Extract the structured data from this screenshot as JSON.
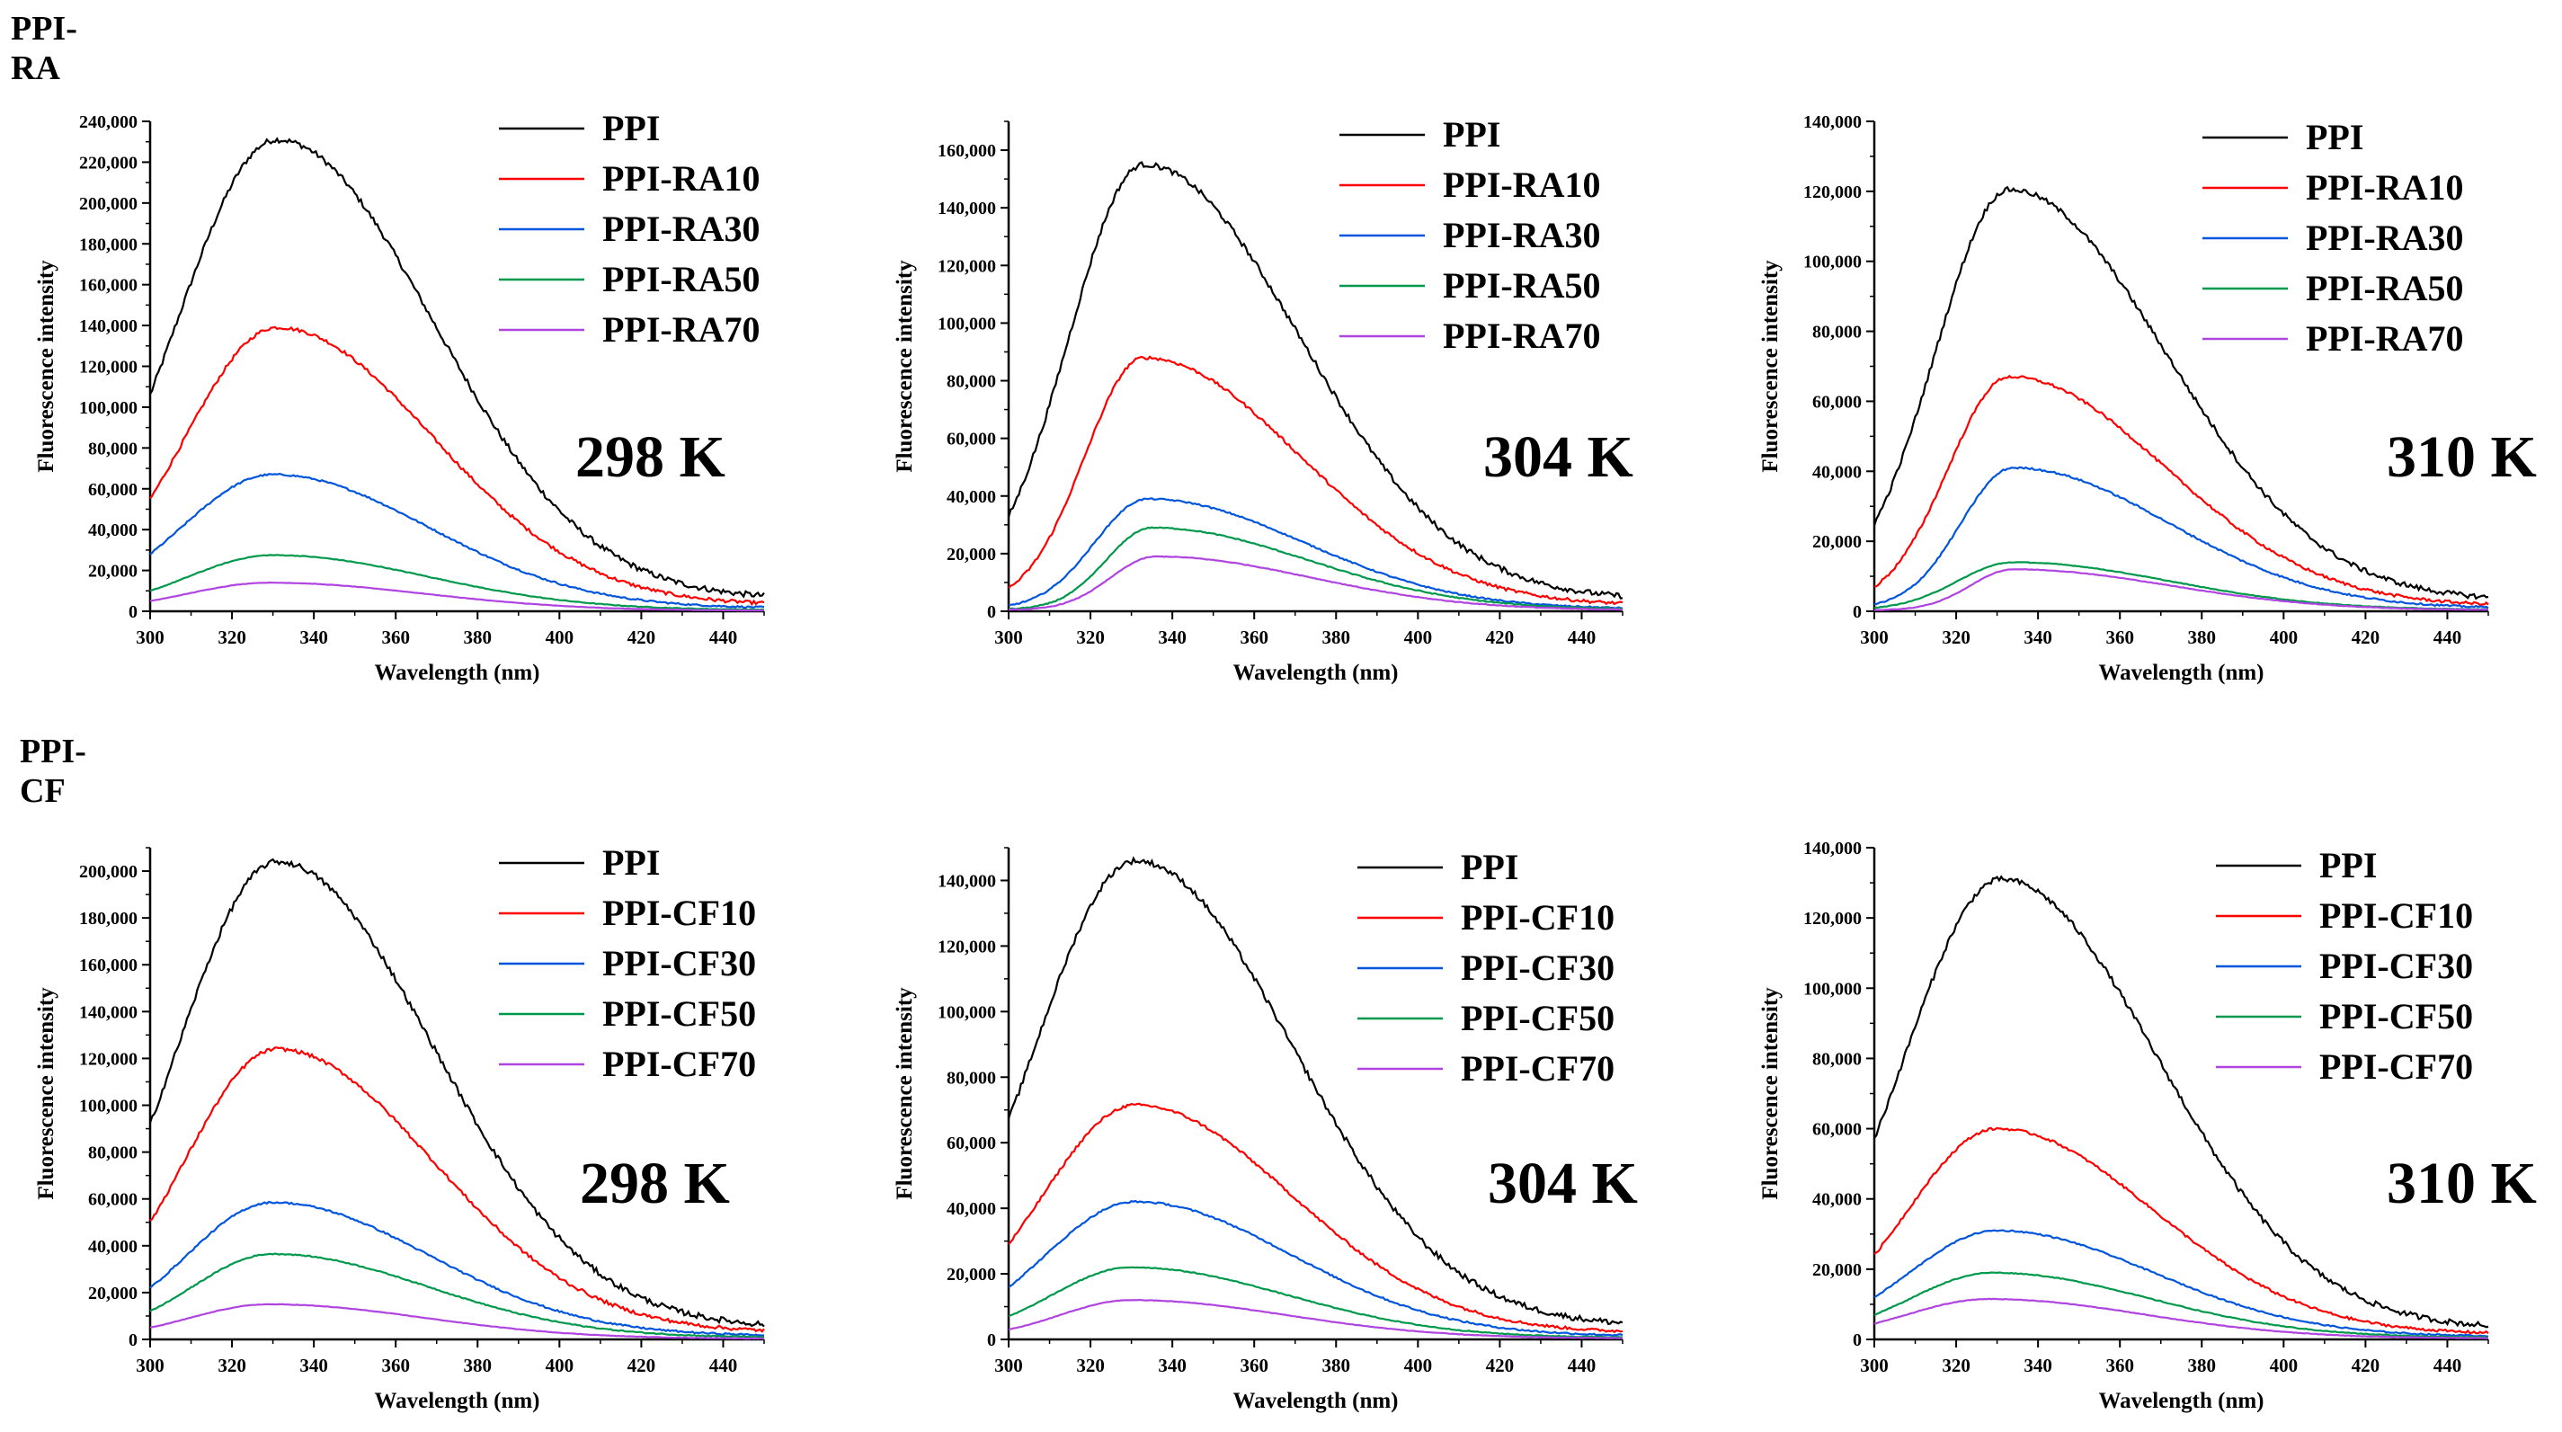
{
  "groups": [
    {
      "title": "PPI-RA"
    },
    {
      "title": "PPI-CF"
    }
  ],
  "colors": {
    "PPI": "#000000",
    "s10": "#ff0000",
    "s30": "#0055dd",
    "s50": "#00994c",
    "s70": "#b044e0",
    "axis": "#000000"
  },
  "chart_data": [
    {
      "type": "line",
      "group": "PPI-RA",
      "temp_label": "298 K",
      "xlabel": "Wavelength (nm)",
      "ylabel": "Fluorescence intensity",
      "xlim": [
        300,
        450
      ],
      "ylim": [
        0,
        240000
      ],
      "xticks": [
        "300",
        "320",
        "340",
        "360",
        "380",
        "400",
        "420",
        "440"
      ],
      "yticks": [
        "0",
        "20,000",
        "40,000",
        "60,000",
        "80,000",
        "100,000",
        "120,000",
        "140,000",
        "160,000",
        "180,000",
        "200,000",
        "220,000",
        "240,000"
      ],
      "series": [
        {
          "name": "PPI",
          "peak_x": 331,
          "peak_y": 231000,
          "start_y": 106000,
          "end_y": 6000
        },
        {
          "name": "PPI-RA10",
          "peak_x": 331,
          "peak_y": 139000,
          "start_y": 55000,
          "end_y": 3000
        },
        {
          "name": "PPI-RA30",
          "peak_x": 330,
          "peak_y": 67000,
          "start_y": 28000,
          "end_y": 1500
        },
        {
          "name": "PPI-RA50",
          "peak_x": 330,
          "peak_y": 27500,
          "start_y": 10000,
          "end_y": 600
        },
        {
          "name": "PPI-RA70",
          "peak_x": 329,
          "peak_y": 14000,
          "start_y": 5000,
          "end_y": 300
        }
      ]
    },
    {
      "type": "line",
      "group": "PPI-RA",
      "temp_label": "304 K",
      "xlabel": "Wavelength (nm)",
      "ylabel": "Fluorescence intensity",
      "xlim": [
        300,
        450
      ],
      "ylim": [
        0,
        170000
      ],
      "xticks": [
        "300",
        "320",
        "340",
        "360",
        "380",
        "400",
        "420",
        "440"
      ],
      "yticks": [
        "0",
        "20,000",
        "40,000",
        "60,000",
        "80,000",
        "100,000",
        "120,000",
        "140,000",
        "160,000"
      ],
      "series": [
        {
          "name": "PPI",
          "peak_x": 333,
          "peak_y": 155000,
          "start_y": 33000,
          "end_y": 4000
        },
        {
          "name": "PPI-RA10",
          "peak_x": 333,
          "peak_y": 88000,
          "start_y": 8000,
          "end_y": 2000
        },
        {
          "name": "PPI-RA30",
          "peak_x": 334,
          "peak_y": 39000,
          "start_y": 2000,
          "end_y": 800
        },
        {
          "name": "PPI-RA50",
          "peak_x": 335,
          "peak_y": 29000,
          "start_y": 800,
          "end_y": 600
        },
        {
          "name": "PPI-RA70",
          "peak_x": 336,
          "peak_y": 19000,
          "start_y": 300,
          "end_y": 400
        }
      ]
    },
    {
      "type": "line",
      "group": "PPI-RA",
      "temp_label": "310 K",
      "xlabel": "Wavelength (nm)",
      "ylabel": "Fluorescence intensity",
      "xlim": [
        300,
        450
      ],
      "ylim": [
        0,
        140000
      ],
      "xticks": [
        "300",
        "320",
        "340",
        "360",
        "380",
        "400",
        "420",
        "440"
      ],
      "yticks": [
        "0",
        "20,000",
        "40,000",
        "60,000",
        "80,000",
        "100,000",
        "120,000",
        "140,000"
      ],
      "series": [
        {
          "name": "PPI",
          "peak_x": 333,
          "peak_y": 120500,
          "start_y": 25000,
          "end_y": 3000
        },
        {
          "name": "PPI-RA10",
          "peak_x": 333,
          "peak_y": 67000,
          "start_y": 7000,
          "end_y": 1500
        },
        {
          "name": "PPI-RA30",
          "peak_x": 334,
          "peak_y": 41000,
          "start_y": 2000,
          "end_y": 800
        },
        {
          "name": "PPI-RA50",
          "peak_x": 334,
          "peak_y": 14000,
          "start_y": 1000,
          "end_y": 400
        },
        {
          "name": "PPI-RA70",
          "peak_x": 334,
          "peak_y": 12000,
          "start_y": 300,
          "end_y": 300
        }
      ]
    },
    {
      "type": "line",
      "group": "PPI-CF",
      "temp_label": "298 K",
      "xlabel": "Wavelength (nm)",
      "ylabel": "Fluorescence intensity",
      "xlim": [
        300,
        450
      ],
      "ylim": [
        0,
        210000
      ],
      "xticks": [
        "300",
        "320",
        "340",
        "360",
        "380",
        "400",
        "420",
        "440"
      ],
      "yticks": [
        "0",
        "20,000",
        "40,000",
        "60,000",
        "80,000",
        "100,000",
        "120,000",
        "140,000",
        "160,000",
        "180,000",
        "200,000"
      ],
      "series": [
        {
          "name": "PPI",
          "peak_x": 331,
          "peak_y": 204000,
          "start_y": 92000,
          "end_y": 5000
        },
        {
          "name": "PPI-CF10",
          "peak_x": 331,
          "peak_y": 124000,
          "start_y": 50000,
          "end_y": 3000
        },
        {
          "name": "PPI-CF30",
          "peak_x": 330,
          "peak_y": 58500,
          "start_y": 22000,
          "end_y": 1500
        },
        {
          "name": "PPI-CF50",
          "peak_x": 330,
          "peak_y": 36500,
          "start_y": 12000,
          "end_y": 800
        },
        {
          "name": "PPI-CF70",
          "peak_x": 329,
          "peak_y": 15000,
          "start_y": 5000,
          "end_y": 300
        }
      ]
    },
    {
      "type": "line",
      "group": "PPI-CF",
      "temp_label": "304 K",
      "xlabel": "Wavelength (nm)",
      "ylabel": "Fluorescence intensity",
      "xlim": [
        300,
        450
      ],
      "ylim": [
        0,
        150000
      ],
      "xticks": [
        "300",
        "320",
        "340",
        "360",
        "380",
        "400",
        "420",
        "440"
      ],
      "yticks": [
        "0",
        "20,000",
        "40,000",
        "60,000",
        "80,000",
        "100,000",
        "120,000",
        "140,000"
      ],
      "series": [
        {
          "name": "PPI",
          "peak_x": 331,
          "peak_y": 146000,
          "start_y": 67000,
          "end_y": 4000
        },
        {
          "name": "PPI-CF10",
          "peak_x": 331,
          "peak_y": 71500,
          "start_y": 29000,
          "end_y": 2000
        },
        {
          "name": "PPI-CF30",
          "peak_x": 331,
          "peak_y": 42000,
          "start_y": 16000,
          "end_y": 1000
        },
        {
          "name": "PPI-CF50",
          "peak_x": 330,
          "peak_y": 22000,
          "start_y": 7000,
          "end_y": 500
        },
        {
          "name": "PPI-CF70",
          "peak_x": 330,
          "peak_y": 12000,
          "start_y": 3000,
          "end_y": 300
        }
      ]
    },
    {
      "type": "line",
      "group": "PPI-CF",
      "temp_label": "310 K",
      "xlabel": "Wavelength (nm)",
      "ylabel": "Fluorescence intensity",
      "xlim": [
        300,
        450
      ],
      "ylim": [
        0,
        140000
      ],
      "xticks": [
        "300",
        "320",
        "340",
        "360",
        "380",
        "400",
        "420",
        "440"
      ],
      "yticks": [
        "0",
        "20,000",
        "40,000",
        "60,000",
        "80,000",
        "100,000",
        "120,000",
        "140,000"
      ],
      "series": [
        {
          "name": "PPI",
          "peak_x": 331,
          "peak_y": 131000,
          "start_y": 57000,
          "end_y": 3000
        },
        {
          "name": "PPI-CF10",
          "peak_x": 330,
          "peak_y": 60000,
          "start_y": 24000,
          "end_y": 1500
        },
        {
          "name": "PPI-CF30",
          "peak_x": 330,
          "peak_y": 31000,
          "start_y": 12000,
          "end_y": 800
        },
        {
          "name": "PPI-CF50",
          "peak_x": 329,
          "peak_y": 19000,
          "start_y": 7000,
          "end_y": 500
        },
        {
          "name": "PPI-CF70",
          "peak_x": 328,
          "peak_y": 11500,
          "start_y": 4500,
          "end_y": 300
        }
      ]
    }
  ]
}
